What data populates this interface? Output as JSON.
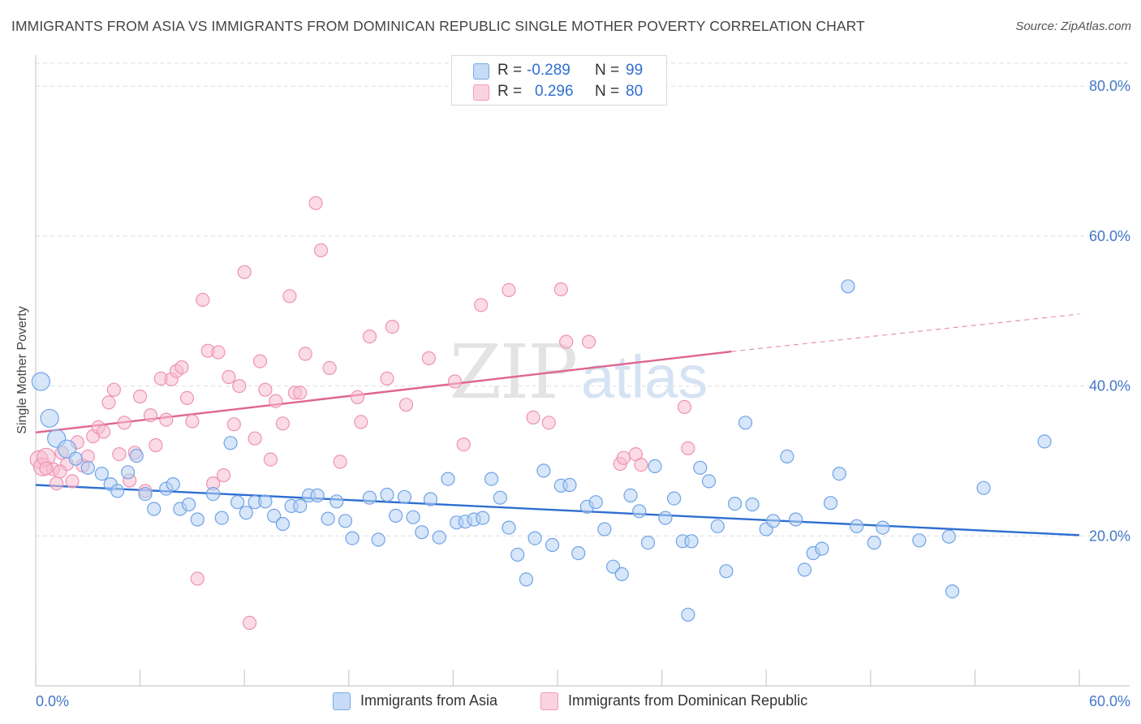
{
  "header": {
    "title": "IMMIGRANTS FROM ASIA VS IMMIGRANTS FROM DOMINICAN REPUBLIC SINGLE MOTHER POVERTY CORRELATION CHART",
    "source": "Source: ZipAtlas.com"
  },
  "watermark": {
    "zip": "ZIP",
    "atlas": "atlas"
  },
  "legend": {
    "series1": {
      "r_label": "R =",
      "r_value": "-0.289",
      "n_label": "N =",
      "n_value": "99"
    },
    "series2": {
      "r_label": "R =",
      "r_value": "0.296",
      "n_label": "N =",
      "n_value": "80"
    }
  },
  "chart_data": {
    "type": "scatter",
    "title": "IMMIGRANTS FROM ASIA VS IMMIGRANTS FROM DOMINICAN REPUBLIC SINGLE MOTHER POVERTY CORRELATION CHART",
    "xlabel": "",
    "ylabel": "Single Mother Poverty",
    "xlim": [
      0,
      60
    ],
    "ylim": [
      0,
      85
    ],
    "x_tick_labels": [
      "0.0%",
      "60.0%"
    ],
    "y_ticks": [
      20,
      40,
      60,
      80
    ],
    "y_tick_labels": [
      "20.0%",
      "40.0%",
      "60.0%",
      "80.0%"
    ],
    "grid": "horizontal dashed",
    "legend_position": "bottom-center",
    "colors": {
      "asia": "#6fa3e8",
      "asia_line": "#2f6fd0",
      "dominican": "#f29bb8",
      "dominican_line": "#e0648f",
      "tick_text": "#4477c8"
    },
    "series": [
      {
        "name": "Immigrants from Asia",
        "color": "#6fa3e8",
        "trend": {
          "x": [
            0,
            60
          ],
          "y": [
            26.8,
            20.1
          ],
          "style": "solid"
        },
        "points": [
          [
            0.3,
            40.6
          ],
          [
            0.8,
            35.7
          ],
          [
            1.2,
            33.0
          ],
          [
            1.8,
            31.6
          ],
          [
            2.3,
            30.3
          ],
          [
            3.0,
            29.1
          ],
          [
            3.8,
            28.3
          ],
          [
            4.3,
            26.9
          ],
          [
            4.7,
            26.0
          ],
          [
            5.3,
            28.5
          ],
          [
            5.8,
            30.7
          ],
          [
            6.3,
            25.6
          ],
          [
            6.8,
            23.6
          ],
          [
            7.5,
            26.3
          ],
          [
            7.9,
            26.9
          ],
          [
            8.3,
            23.6
          ],
          [
            8.8,
            24.2
          ],
          [
            9.3,
            22.2
          ],
          [
            10.2,
            25.6
          ],
          [
            10.7,
            22.4
          ],
          [
            11.2,
            32.4
          ],
          [
            11.6,
            24.5
          ],
          [
            12.1,
            23.1
          ],
          [
            12.6,
            24.5
          ],
          [
            13.2,
            24.6
          ],
          [
            13.7,
            22.7
          ],
          [
            14.2,
            21.6
          ],
          [
            14.7,
            24.0
          ],
          [
            15.2,
            24.0
          ],
          [
            15.7,
            25.4
          ],
          [
            16.2,
            25.4
          ],
          [
            16.8,
            22.3
          ],
          [
            17.3,
            24.6
          ],
          [
            17.8,
            22.0
          ],
          [
            18.2,
            19.7
          ],
          [
            19.2,
            25.1
          ],
          [
            19.7,
            19.5
          ],
          [
            20.2,
            25.5
          ],
          [
            20.7,
            22.7
          ],
          [
            21.2,
            25.2
          ],
          [
            21.7,
            22.5
          ],
          [
            22.2,
            20.5
          ],
          [
            22.7,
            24.9
          ],
          [
            23.2,
            19.8
          ],
          [
            23.7,
            27.6
          ],
          [
            24.2,
            21.8
          ],
          [
            24.7,
            21.9
          ],
          [
            25.2,
            22.2
          ],
          [
            25.7,
            22.4
          ],
          [
            26.2,
            27.6
          ],
          [
            26.7,
            25.1
          ],
          [
            27.2,
            21.1
          ],
          [
            27.7,
            17.5
          ],
          [
            28.2,
            14.2
          ],
          [
            28.7,
            19.7
          ],
          [
            29.2,
            28.7
          ],
          [
            29.7,
            18.8
          ],
          [
            30.2,
            26.7
          ],
          [
            30.7,
            26.8
          ],
          [
            31.2,
            17.7
          ],
          [
            31.7,
            23.9
          ],
          [
            32.2,
            24.5
          ],
          [
            32.7,
            20.9
          ],
          [
            33.2,
            15.9
          ],
          [
            33.7,
            14.9
          ],
          [
            34.2,
            25.4
          ],
          [
            34.7,
            23.3
          ],
          [
            35.2,
            19.1
          ],
          [
            35.6,
            29.3
          ],
          [
            36.2,
            22.4
          ],
          [
            36.7,
            25.0
          ],
          [
            37.2,
            19.3
          ],
          [
            37.7,
            19.3
          ],
          [
            38.2,
            29.1
          ],
          [
            38.7,
            27.3
          ],
          [
            39.2,
            21.3
          ],
          [
            39.7,
            15.3
          ],
          [
            40.2,
            24.3
          ],
          [
            40.8,
            35.1
          ],
          [
            41.2,
            24.2
          ],
          [
            42.0,
            20.9
          ],
          [
            42.4,
            22.0
          ],
          [
            43.2,
            30.6
          ],
          [
            43.7,
            22.2
          ],
          [
            44.2,
            15.5
          ],
          [
            44.7,
            17.7
          ],
          [
            45.2,
            18.3
          ],
          [
            45.7,
            24.4
          ],
          [
            46.2,
            28.3
          ],
          [
            46.7,
            53.3
          ],
          [
            47.2,
            21.3
          ],
          [
            48.2,
            19.1
          ],
          [
            48.7,
            21.1
          ],
          [
            50.8,
            19.4
          ],
          [
            52.5,
            19.9
          ],
          [
            52.7,
            12.6
          ],
          [
            54.5,
            26.4
          ],
          [
            58.0,
            32.6
          ],
          [
            37.5,
            9.5
          ]
        ]
      },
      {
        "name": "Immigrants from Dominican Republic",
        "color": "#f29bb8",
        "trend": {
          "x": [
            0,
            40
          ],
          "y": [
            33.8,
            44.6
          ],
          "style": "solid",
          "dashed_x": [
            40,
            60
          ],
          "dashed_y": [
            44.6,
            49.6
          ]
        },
        "points": [
          [
            0.2,
            30.2
          ],
          [
            0.4,
            29.2
          ],
          [
            0.6,
            30.5
          ],
          [
            1.0,
            28.9
          ],
          [
            1.2,
            27.0
          ],
          [
            1.5,
            31.1
          ],
          [
            1.8,
            29.6
          ],
          [
            2.1,
            27.3
          ],
          [
            2.4,
            32.5
          ],
          [
            2.7,
            29.4
          ],
          [
            3.0,
            30.6
          ],
          [
            3.3,
            33.3
          ],
          [
            3.6,
            34.5
          ],
          [
            3.9,
            33.9
          ],
          [
            4.2,
            37.8
          ],
          [
            4.5,
            39.5
          ],
          [
            4.8,
            30.9
          ],
          [
            5.1,
            35.1
          ],
          [
            5.4,
            27.4
          ],
          [
            5.7,
            31.1
          ],
          [
            6.0,
            38.6
          ],
          [
            6.3,
            26.0
          ],
          [
            6.6,
            36.1
          ],
          [
            6.9,
            32.1
          ],
          [
            7.2,
            41.0
          ],
          [
            7.5,
            35.5
          ],
          [
            7.8,
            40.9
          ],
          [
            8.1,
            42.0
          ],
          [
            8.4,
            42.5
          ],
          [
            8.7,
            38.4
          ],
          [
            9.0,
            35.3
          ],
          [
            9.3,
            14.3
          ],
          [
            9.6,
            51.5
          ],
          [
            9.9,
            44.7
          ],
          [
            10.2,
            27.0
          ],
          [
            10.5,
            44.5
          ],
          [
            10.8,
            28.1
          ],
          [
            11.1,
            41.2
          ],
          [
            11.4,
            34.9
          ],
          [
            11.7,
            40.0
          ],
          [
            12.0,
            55.2
          ],
          [
            12.3,
            8.4
          ],
          [
            12.6,
            33.0
          ],
          [
            12.9,
            43.3
          ],
          [
            13.2,
            39.5
          ],
          [
            13.5,
            30.2
          ],
          [
            13.8,
            38.0
          ],
          [
            14.2,
            35.0
          ],
          [
            14.6,
            52.0
          ],
          [
            14.9,
            39.1
          ],
          [
            15.2,
            39.1
          ],
          [
            15.5,
            44.3
          ],
          [
            16.1,
            64.4
          ],
          [
            16.4,
            58.1
          ],
          [
            16.9,
            42.4
          ],
          [
            17.5,
            29.9
          ],
          [
            18.5,
            38.5
          ],
          [
            18.7,
            35.2
          ],
          [
            19.2,
            46.6
          ],
          [
            20.2,
            41.0
          ],
          [
            20.5,
            47.9
          ],
          [
            21.3,
            37.5
          ],
          [
            22.6,
            43.7
          ],
          [
            24.1,
            40.6
          ],
          [
            24.6,
            32.2
          ],
          [
            25.6,
            50.8
          ],
          [
            27.2,
            52.8
          ],
          [
            28.6,
            35.8
          ],
          [
            29.5,
            35.1
          ],
          [
            30.2,
            52.9
          ],
          [
            30.5,
            45.9
          ],
          [
            31.8,
            45.9
          ],
          [
            33.6,
            29.6
          ],
          [
            33.8,
            30.4
          ],
          [
            34.5,
            30.9
          ],
          [
            34.8,
            29.5
          ],
          [
            37.3,
            37.2
          ],
          [
            37.5,
            31.7
          ],
          [
            0.6,
            29.0
          ],
          [
            1.4,
            28.6
          ]
        ]
      }
    ]
  },
  "bottom_legend": {
    "series1": "Immigrants from Asia",
    "series2": "Immigrants from Dominican Republic"
  }
}
